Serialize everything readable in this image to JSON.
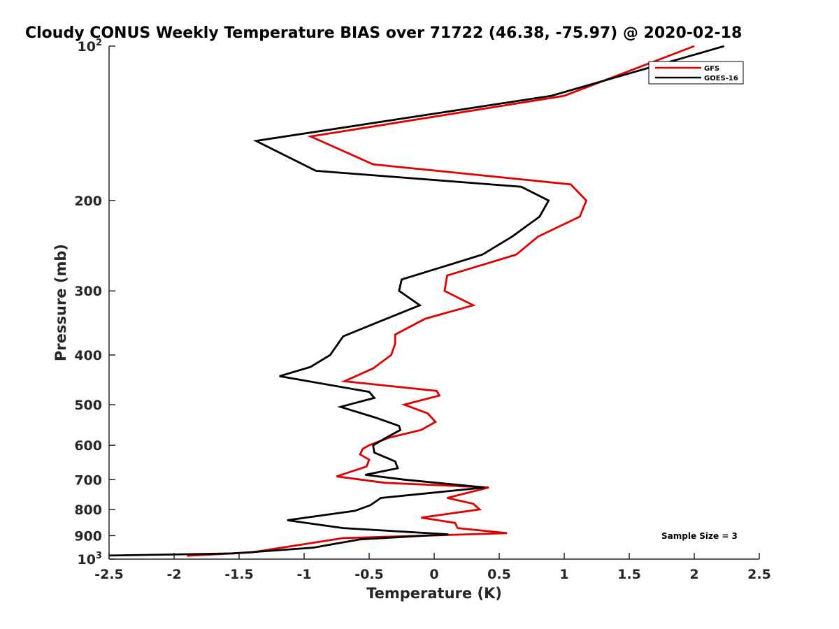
{
  "chart_data": {
    "type": "line",
    "title": "Cloudy CONUS Weekly Temperature BIAS over 71722 (46.38, -75.97) @ 2020-02-18",
    "xlabel": "Temperature (K)",
    "ylabel": "Pressure (mb)",
    "xlim": [
      -2.5,
      2.5
    ],
    "ylim": [
      100,
      1000
    ],
    "y_scale": "log",
    "y_reversed": true,
    "grid": false,
    "legend_position": "top-right",
    "x_ticks": [
      -2.5,
      -2,
      -1.5,
      -1,
      -0.5,
      0,
      0.5,
      1,
      1.5,
      2,
      2.5
    ],
    "x_tick_labels": [
      "-2.5",
      "-2",
      "-1.5",
      "-1",
      "-0.5",
      "0",
      "0.5",
      "1",
      "1.5",
      "2",
      "2.5"
    ],
    "y_ticks": [
      100,
      200,
      300,
      400,
      500,
      600,
      700,
      800,
      900,
      1000
    ],
    "y_tick_labels": [
      {
        "base": "10",
        "exp": "2"
      },
      {
        "base": "200",
        "exp": ""
      },
      {
        "base": "300",
        "exp": ""
      },
      {
        "base": "400",
        "exp": ""
      },
      {
        "base": "500",
        "exp": ""
      },
      {
        "base": "600",
        "exp": ""
      },
      {
        "base": "700",
        "exp": ""
      },
      {
        "base": "800",
        "exp": ""
      },
      {
        "base": "900",
        "exp": ""
      },
      {
        "base": "10",
        "exp": "3"
      }
    ],
    "series": [
      {
        "name": "GFS",
        "color": "#e00000",
        "points": [
          [
            2.0,
            100
          ],
          [
            1.0,
            125
          ],
          [
            -0.95,
            150
          ],
          [
            -0.47,
            170
          ],
          [
            1.05,
            186
          ],
          [
            1.17,
            200
          ],
          [
            1.12,
            215
          ],
          [
            0.8,
            235
          ],
          [
            0.63,
            255
          ],
          [
            0.1,
            280
          ],
          [
            0.08,
            300
          ],
          [
            0.3,
            320
          ],
          [
            -0.07,
            340
          ],
          [
            -0.3,
            365
          ],
          [
            -0.3,
            380
          ],
          [
            -0.33,
            400
          ],
          [
            -0.47,
            425
          ],
          [
            -0.69,
            450
          ],
          [
            0.02,
            470
          ],
          [
            0.04,
            480
          ],
          [
            -0.23,
            500
          ],
          [
            -0.05,
            520
          ],
          [
            0.01,
            540
          ],
          [
            -0.1,
            560
          ],
          [
            -0.35,
            580
          ],
          [
            -0.5,
            600
          ],
          [
            -0.55,
            610
          ],
          [
            -0.57,
            625
          ],
          [
            -0.5,
            640
          ],
          [
            -0.52,
            660
          ],
          [
            -0.75,
            690
          ],
          [
            -0.38,
            710
          ],
          [
            0.42,
            725
          ],
          [
            0.1,
            760
          ],
          [
            0.3,
            780
          ],
          [
            0.35,
            800
          ],
          [
            -0.1,
            830
          ],
          [
            0.16,
            850
          ],
          [
            0.18,
            870
          ],
          [
            0.56,
            890
          ],
          [
            -0.7,
            910
          ],
          [
            -1.0,
            935
          ],
          [
            -1.4,
            970
          ],
          [
            -1.9,
            985
          ]
        ]
      },
      {
        "name": "GOES-16",
        "color": "#000000",
        "points": [
          [
            2.23,
            100
          ],
          [
            0.9,
            125
          ],
          [
            -1.37,
            153
          ],
          [
            -0.91,
            175
          ],
          [
            0.67,
            188
          ],
          [
            0.88,
            200
          ],
          [
            0.81,
            215
          ],
          [
            0.6,
            235
          ],
          [
            0.37,
            255
          ],
          [
            -0.25,
            285
          ],
          [
            -0.27,
            300
          ],
          [
            -0.11,
            320
          ],
          [
            -0.43,
            345
          ],
          [
            -0.7,
            368
          ],
          [
            -0.8,
            400
          ],
          [
            -0.95,
            422
          ],
          [
            -1.19,
            440
          ],
          [
            -0.5,
            472
          ],
          [
            -0.46,
            485
          ],
          [
            -0.72,
            505
          ],
          [
            -0.45,
            530
          ],
          [
            -0.27,
            550
          ],
          [
            -0.26,
            560
          ],
          [
            -0.37,
            580
          ],
          [
            -0.47,
            600
          ],
          [
            -0.46,
            620
          ],
          [
            -0.3,
            645
          ],
          [
            -0.28,
            665
          ],
          [
            -0.53,
            685
          ],
          [
            -0.23,
            700
          ],
          [
            0.39,
            725
          ],
          [
            -0.41,
            760
          ],
          [
            -0.49,
            785
          ],
          [
            -0.61,
            805
          ],
          [
            -1.13,
            840
          ],
          [
            -0.7,
            870
          ],
          [
            0.11,
            895
          ],
          [
            -0.57,
            915
          ],
          [
            -0.93,
            950
          ],
          [
            -1.3,
            965
          ],
          [
            -1.55,
            975
          ],
          [
            -2.6,
            985
          ]
        ]
      }
    ],
    "annotation": "Sample Size = 3"
  }
}
